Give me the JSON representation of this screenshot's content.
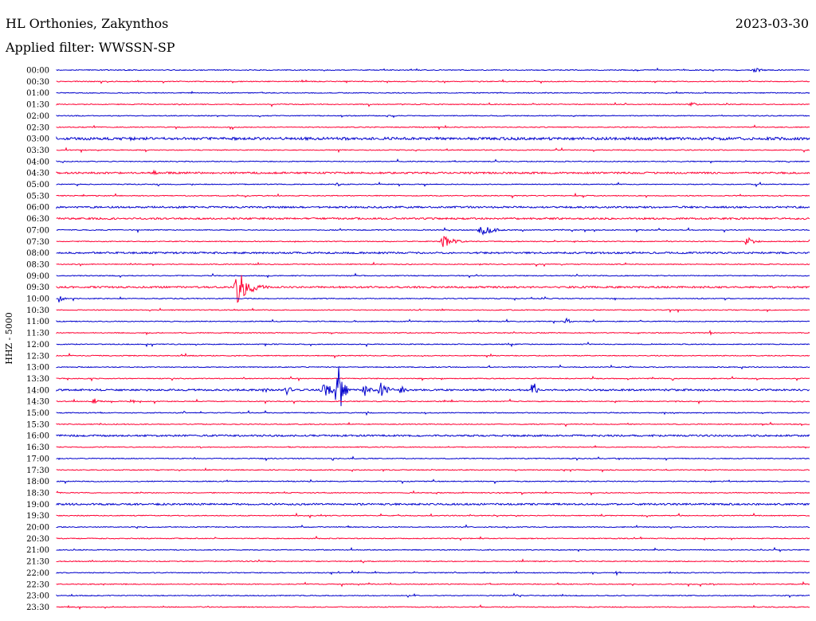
{
  "header": {
    "station": "HL Orthonies, Zakynthos",
    "date": "2023-03-30",
    "filter": "Applied filter: WWSSN-SP",
    "channel": "HHZ - 5000"
  },
  "colors": {
    "even_trace": "#0000cc",
    "odd_trace": "#ff0033"
  },
  "chart_data": {
    "type": "line",
    "title": "",
    "xlabel": "",
    "ylabel": "HHZ - 5000",
    "grid": false,
    "row_labels": [
      "00:00",
      "00:30",
      "01:00",
      "01:30",
      "02:00",
      "02:30",
      "03:00",
      "03:30",
      "04:00",
      "04:30",
      "05:00",
      "05:30",
      "06:00",
      "06:30",
      "07:00",
      "07:30",
      "08:00",
      "08:30",
      "09:00",
      "09:30",
      "10:00",
      "10:30",
      "11:00",
      "11:30",
      "12:00",
      "12:30",
      "13:00",
      "13:30",
      "14:00",
      "14:30",
      "15:00",
      "15:30",
      "16:00",
      "16:30",
      "17:00",
      "17:30",
      "18:00",
      "18:30",
      "19:00",
      "19:30",
      "20:00",
      "20:30",
      "21:00",
      "21:30",
      "22:00",
      "22:30",
      "23:00",
      "23:30"
    ],
    "row_minutes": 30,
    "noise_level": [
      1,
      1,
      1,
      1,
      1,
      1,
      3,
      1,
      1,
      2,
      1,
      1,
      2,
      2,
      1,
      1,
      2,
      1,
      1,
      2,
      1,
      1,
      1,
      1,
      1,
      1,
      1,
      1,
      2,
      1,
      1,
      1,
      2,
      1,
      1,
      1,
      1,
      1,
      2,
      1,
      1,
      1,
      1,
      1,
      1,
      1,
      1,
      1
    ],
    "events": [
      {
        "row": 0,
        "minute": 27.8,
        "amp": 3,
        "dur": 1.0
      },
      {
        "row": 3,
        "minute": 25.3,
        "amp": 3,
        "dur": 0.8
      },
      {
        "row": 6,
        "minute": 3.0,
        "amp": 3,
        "dur": 0.6
      },
      {
        "row": 9,
        "minute": 3.8,
        "amp": 4,
        "dur": 0.6
      },
      {
        "row": 10,
        "minute": 11.2,
        "amp": 3,
        "dur": 0.3
      },
      {
        "row": 14,
        "minute": 16.9,
        "amp": 9,
        "dur": 1.2
      },
      {
        "row": 15,
        "minute": 15.4,
        "amp": 8,
        "dur": 1.2
      },
      {
        "row": 15,
        "minute": 27.5,
        "amp": 6,
        "dur": 0.8
      },
      {
        "row": 19,
        "minute": 7.2,
        "amp": 24,
        "dur": 1.3
      },
      {
        "row": 20,
        "minute": 0.1,
        "amp": 5,
        "dur": 0.5
      },
      {
        "row": 22,
        "minute": 20.3,
        "amp": 5,
        "dur": 0.5
      },
      {
        "row": 28,
        "minute": 8.3,
        "amp": 4,
        "dur": 0.4
      },
      {
        "row": 28,
        "minute": 9.2,
        "amp": 9,
        "dur": 0.4
      },
      {
        "row": 28,
        "minute": 10.6,
        "amp": 10,
        "dur": 1.2
      },
      {
        "row": 28,
        "minute": 11.2,
        "amp": 48,
        "dur": 0.5
      },
      {
        "row": 28,
        "minute": 12.3,
        "amp": 10,
        "dur": 0.6
      },
      {
        "row": 28,
        "minute": 12.9,
        "amp": 12,
        "dur": 0.8
      },
      {
        "row": 28,
        "minute": 13.7,
        "amp": 8,
        "dur": 0.6
      },
      {
        "row": 28,
        "minute": 19.0,
        "amp": 14,
        "dur": 0.3
      },
      {
        "row": 29,
        "minute": 1.5,
        "amp": 4,
        "dur": 0.6
      },
      {
        "row": 29,
        "minute": 3.0,
        "amp": 3,
        "dur": 0.4
      }
    ]
  }
}
